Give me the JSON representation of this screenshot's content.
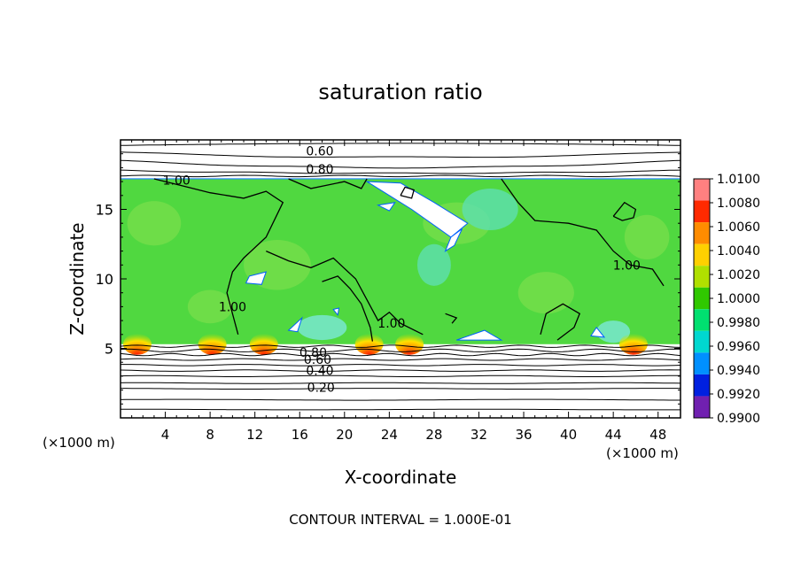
{
  "chart_data": {
    "type": "heatmap",
    "title": "saturation ratio",
    "xlabel": "X-coordinate",
    "ylabel": "Z-coordinate",
    "x_unit_left": "(×1000 m)",
    "x_unit_right": "(×1000 m)",
    "footer": "CONTOUR INTERVAL = 1.000E-01",
    "xlim": [
      0,
      50
    ],
    "ylim": [
      0,
      20
    ],
    "x_ticks": [
      4,
      8,
      12,
      16,
      20,
      24,
      28,
      32,
      36,
      40,
      44,
      48
    ],
    "y_ticks": [
      5,
      10,
      15
    ],
    "colorbar_levels": [
      "1.0100",
      "1.0080",
      "1.0060",
      "1.0040",
      "1.0020",
      "1.0000",
      "0.9980",
      "0.9960",
      "0.9940",
      "0.9920",
      "0.9900"
    ],
    "colorbar_colors": [
      "#ff8080",
      "#ff2a00",
      "#ff8c00",
      "#ffd000",
      "#b0e000",
      "#30c800",
      "#00e070",
      "#00d8d0",
      "#0090ff",
      "#0020e0",
      "#7020b0"
    ],
    "field_color": "#50d840",
    "contour_labels": [
      {
        "text": "0.60",
        "x": 17.8,
        "y": 19.2
      },
      {
        "text": "0.80",
        "x": 17.8,
        "y": 17.9
      },
      {
        "text": "1.00",
        "x": 5.0,
        "y": 17.1
      },
      {
        "text": "1.00",
        "x": 45.2,
        "y": 11.0
      },
      {
        "text": "1.00",
        "x": 10.0,
        "y": 8.0
      },
      {
        "text": "1.00",
        "x": 24.2,
        "y": 6.8
      },
      {
        "text": "0.80",
        "x": 17.2,
        "y": 4.7
      },
      {
        "text": "0.60",
        "x": 17.6,
        "y": 4.2
      },
      {
        "text": "0.40",
        "x": 17.8,
        "y": 3.4
      },
      {
        "text": "0.20",
        "x": 17.9,
        "y": 2.2
      }
    ],
    "hotspots_x": [
      1.5,
      8.2,
      12.8,
      22.2,
      25.8,
      45.8
    ],
    "cloud_base_z": 5.3,
    "cloud_top_z": 17.2
  }
}
